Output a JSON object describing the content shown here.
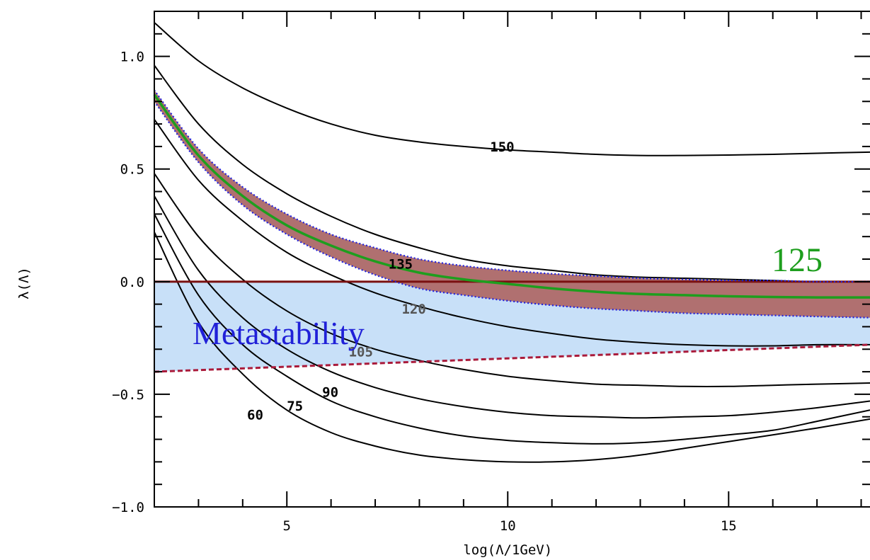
{
  "chart_data": {
    "type": "line",
    "xlabel": "log(Λ/1GeV)",
    "ylabel": "λ(Λ)",
    "xlim": [
      2,
      18.2
    ],
    "ylim": [
      -1.0,
      1.2
    ],
    "x_ticks": [
      5,
      10,
      15
    ],
    "x_tick_labels": [
      "5",
      "10",
      "15"
    ],
    "y_ticks": [
      1.0,
      0.5,
      0.0,
      -0.5,
      -1.0
    ],
    "y_tick_labels": [
      "1.0",
      "0.5",
      "0.0",
      "−0.5",
      "−1.0"
    ],
    "grid": false,
    "series": [
      {
        "name": "150",
        "color": "#000000",
        "x": [
          2,
          3,
          4,
          5,
          6,
          7,
          8,
          9,
          10,
          11,
          12,
          13,
          14,
          15,
          16,
          17,
          18.2
        ],
        "y": [
          1.15,
          0.98,
          0.86,
          0.77,
          0.7,
          0.65,
          0.62,
          0.6,
          0.585,
          0.575,
          0.565,
          0.56,
          0.56,
          0.562,
          0.565,
          0.57,
          0.575
        ]
      },
      {
        "name": "135",
        "color": "#000000",
        "x": [
          2,
          3,
          4,
          5,
          6,
          7,
          8,
          9,
          10,
          11,
          12,
          13,
          14,
          15,
          16,
          17,
          18.2
        ],
        "y": [
          0.96,
          0.7,
          0.52,
          0.39,
          0.29,
          0.21,
          0.15,
          0.1,
          0.07,
          0.05,
          0.03,
          0.02,
          0.015,
          0.01,
          0.005,
          0.0,
          0.0
        ]
      },
      {
        "name": "120",
        "color": "#000000",
        "x": [
          2,
          3,
          4,
          5,
          6,
          7,
          8,
          9,
          10,
          11,
          12,
          13,
          14,
          15,
          16,
          17,
          18.2
        ],
        "y": [
          0.72,
          0.45,
          0.27,
          0.13,
          0.03,
          -0.05,
          -0.11,
          -0.16,
          -0.2,
          -0.23,
          -0.255,
          -0.27,
          -0.28,
          -0.285,
          -0.285,
          -0.28,
          -0.28
        ]
      },
      {
        "name": "105",
        "color": "#000000",
        "x": [
          2,
          3,
          4,
          5,
          6,
          7,
          8,
          9,
          10,
          11,
          12,
          13,
          14,
          15,
          16,
          17,
          18.2
        ],
        "y": [
          0.48,
          0.2,
          0.01,
          -0.13,
          -0.23,
          -0.3,
          -0.35,
          -0.39,
          -0.42,
          -0.44,
          -0.455,
          -0.46,
          -0.465,
          -0.465,
          -0.46,
          -0.455,
          -0.45
        ]
      },
      {
        "name": "90",
        "color": "#000000",
        "x": [
          2,
          3,
          4,
          5,
          6,
          7,
          8,
          9,
          10,
          11,
          12,
          13,
          14,
          15,
          16,
          17,
          18.2
        ],
        "y": [
          0.38,
          0.05,
          -0.16,
          -0.3,
          -0.4,
          -0.47,
          -0.52,
          -0.555,
          -0.58,
          -0.595,
          -0.6,
          -0.605,
          -0.6,
          -0.595,
          -0.58,
          -0.56,
          -0.53
        ]
      },
      {
        "name": "75",
        "color": "#000000",
        "x": [
          2,
          3,
          4,
          5,
          6,
          7,
          8,
          9,
          10,
          11,
          12,
          13,
          14,
          15,
          16,
          17,
          18.2
        ],
        "y": [
          0.3,
          -0.06,
          -0.28,
          -0.42,
          -0.53,
          -0.6,
          -0.65,
          -0.685,
          -0.705,
          -0.715,
          -0.72,
          -0.715,
          -0.7,
          -0.68,
          -0.66,
          -0.62,
          -0.57
        ]
      },
      {
        "name": "60",
        "color": "#000000",
        "x": [
          2,
          3,
          4,
          5,
          6,
          7,
          8,
          9,
          10,
          11,
          12,
          13,
          14,
          15,
          16,
          17,
          18.2
        ],
        "y": [
          0.22,
          -0.18,
          -0.41,
          -0.57,
          -0.67,
          -0.73,
          -0.77,
          -0.79,
          -0.8,
          -0.8,
          -0.79,
          -0.77,
          -0.74,
          -0.71,
          -0.68,
          -0.65,
          -0.61
        ]
      },
      {
        "name": "125",
        "color": "#1e9e1e",
        "x": [
          2,
          3,
          4,
          5,
          6,
          7,
          8,
          9,
          10,
          11,
          12,
          13,
          14,
          15,
          16,
          17,
          18.2
        ],
        "y": [
          0.83,
          0.56,
          0.38,
          0.25,
          0.16,
          0.09,
          0.04,
          0.01,
          -0.01,
          -0.03,
          -0.045,
          -0.055,
          -0.06,
          -0.065,
          -0.068,
          -0.07,
          -0.07
        ]
      }
    ],
    "band_125": {
      "fill": "#b07070",
      "border": "#2222dd",
      "x": [
        2,
        3,
        4,
        5,
        6,
        7,
        8,
        9,
        10,
        11,
        12,
        13,
        14,
        15,
        16,
        17,
        18.2
      ],
      "upper": [
        0.85,
        0.59,
        0.42,
        0.3,
        0.21,
        0.15,
        0.1,
        0.07,
        0.05,
        0.035,
        0.025,
        0.015,
        0.01,
        0.005,
        0.005,
        0.0,
        0.0
      ],
      "lower": [
        0.8,
        0.53,
        0.34,
        0.21,
        0.11,
        0.03,
        -0.03,
        -0.06,
        -0.085,
        -0.105,
        -0.12,
        -0.13,
        -0.14,
        -0.145,
        -0.15,
        -0.155,
        -0.16
      ]
    },
    "metastability": {
      "label": "Metastability",
      "label_color": "#2020d8",
      "fill": "#c8e0f8",
      "upper_color": "#7a1010",
      "lower_color": "#aa1a3a",
      "upper": [
        [
          2,
          0.0
        ],
        [
          18.2,
          0.0
        ]
      ],
      "lower": [
        [
          2,
          -0.4
        ],
        [
          18.2,
          -0.28
        ]
      ]
    },
    "annotations": [
      {
        "text": "150",
        "x": 9.6,
        "y": 0.6,
        "color": "#000000"
      },
      {
        "text": "135",
        "x": 7.3,
        "y": 0.08,
        "color": "#000000"
      },
      {
        "text": "120",
        "x": 7.6,
        "y": -0.12,
        "color": "#555555"
      },
      {
        "text": "105",
        "x": 6.4,
        "y": -0.31,
        "color": "#555555"
      },
      {
        "text": "90",
        "x": 5.8,
        "y": -0.49,
        "color": "#000000"
      },
      {
        "text": "75",
        "x": 5.0,
        "y": -0.55,
        "color": "#000000"
      },
      {
        "text": "60",
        "x": 4.1,
        "y": -0.59,
        "color": "#000000"
      }
    ],
    "highlight_label": {
      "text": "125",
      "color": "#1e9e1e"
    }
  }
}
